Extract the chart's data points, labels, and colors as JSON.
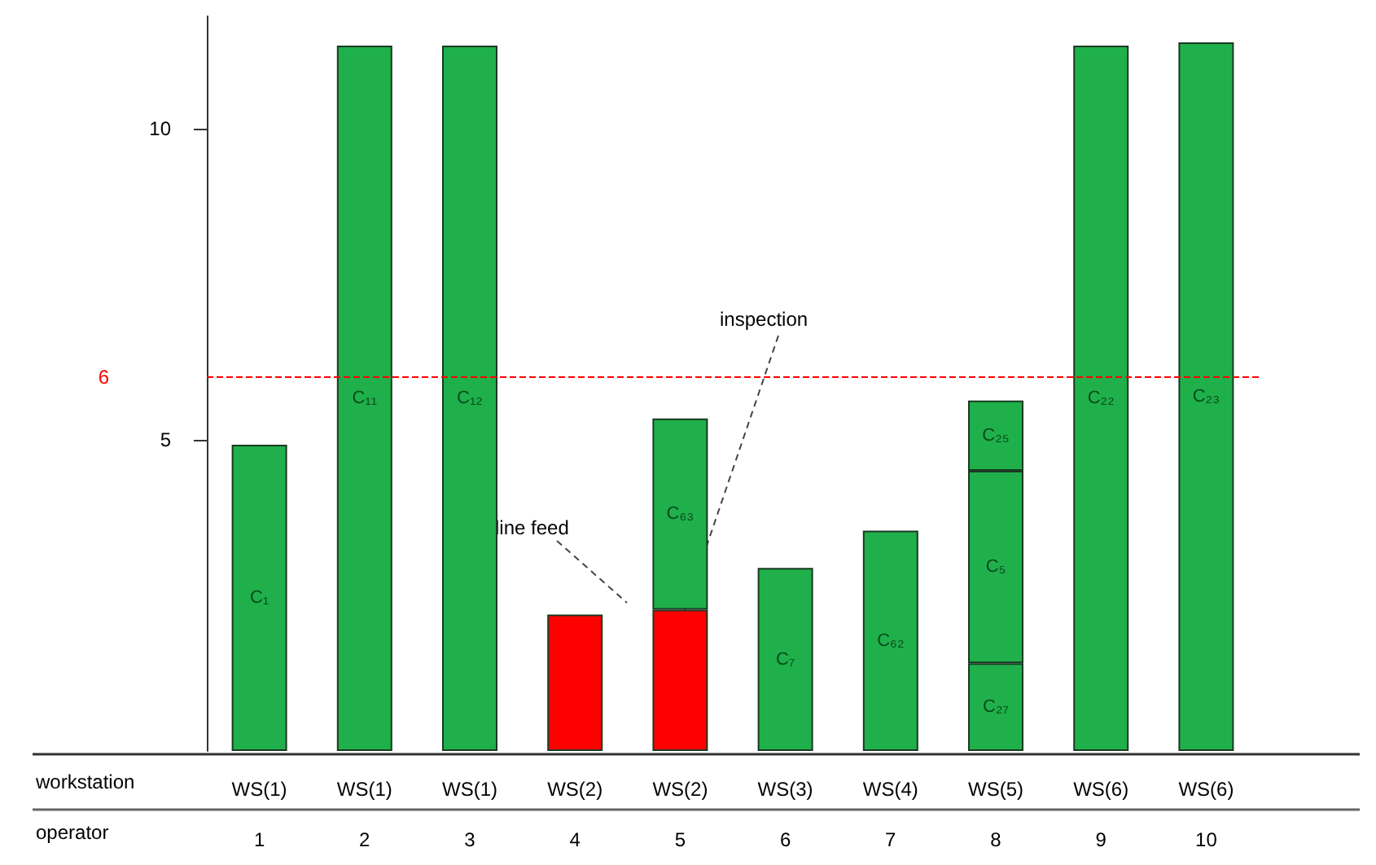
{
  "chart_data": {
    "type": "bar",
    "stacked": true,
    "categories": [
      "WS(1)\n1",
      "WS(1)\n2",
      "WS(1)\n3",
      "WS(2)\n4",
      "WS(2)\n5",
      "WS(3)\n6",
      "WS(4)\n7",
      "WS(5)\n8",
      "WS(6)\n9",
      "WS(6)\n10"
    ],
    "series": [
      {
        "color": "#ff0000",
        "values": [
          null,
          null,
          null,
          2.19,
          2.27,
          null,
          null,
          null,
          null,
          null
        ],
        "value_labels": [
          null,
          null,
          null,
          null,
          null,
          null,
          null,
          null,
          null,
          null
        ]
      },
      {
        "color": "#1fb04b",
        "values": [
          4.92,
          11.33,
          11.33,
          null,
          3.07,
          2.94,
          3.54,
          1.41,
          11.33,
          11.38
        ],
        "value_labels": [
          "C₁",
          "C₁₁",
          "C₁₂",
          null,
          "C₆₃",
          "C₇",
          "C₆₂",
          "C₂₇",
          "C₂₂",
          "C₂₃"
        ]
      },
      {
        "color": "#1fb04b",
        "values": [
          null,
          null,
          null,
          null,
          null,
          null,
          null,
          3.09,
          null,
          null
        ],
        "value_labels": [
          null,
          null,
          null,
          null,
          null,
          null,
          null,
          "C₅",
          null,
          null
        ]
      },
      {
        "color": "#1fb04b",
        "values": [
          null,
          null,
          null,
          null,
          null,
          null,
          null,
          1.13,
          null,
          null
        ],
        "value_labels": [
          null,
          null,
          null,
          null,
          null,
          null,
          null,
          "C₂₅",
          null,
          null
        ]
      }
    ],
    "ylim": [
      0,
      11.8
    ],
    "yticks": [
      5,
      10
    ],
    "grid": false,
    "ref_lines": [
      {
        "axis": "y",
        "value": 6,
        "label": "6",
        "color": "#ff0000",
        "line_style": "dashed"
      }
    ],
    "annotations": [
      "workstation",
      "operator",
      "line feed",
      "inspection"
    ]
  }
}
